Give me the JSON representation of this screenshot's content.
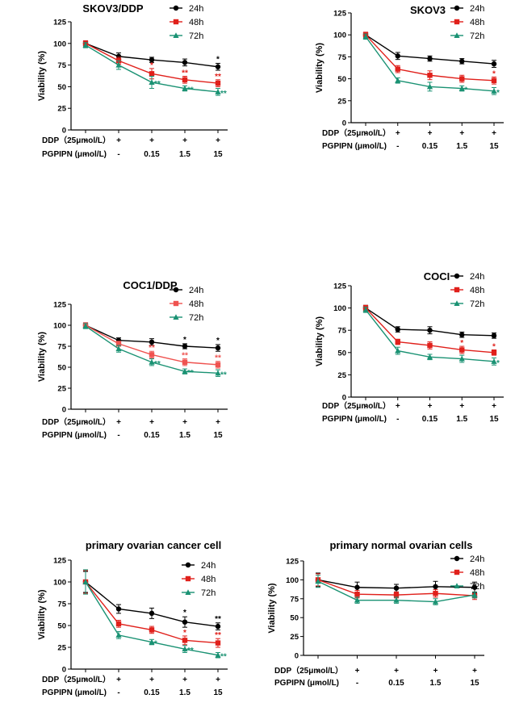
{
  "chart_data": [
    {
      "type": "line",
      "title": "SKOV3/DDP",
      "ylabel": "Viability (%)",
      "ylim": [
        0,
        125
      ],
      "yticks": [
        0,
        25,
        50,
        75,
        100,
        125
      ],
      "conditions": {
        "ddp_label": "DDP（25μmol/L）",
        "ddp": [
          "-",
          "+",
          "+",
          "+",
          "+"
        ],
        "pgpipn_label": "PGPIPN (μmol/L)",
        "pgpipn": [
          "-",
          "-",
          "0.15",
          "1.5",
          "15"
        ]
      },
      "series": [
        {
          "name": "24h",
          "color": "#000000",
          "marker": "circle",
          "values": [
            100,
            85,
            81,
            78,
            73
          ],
          "errors": [
            3,
            4,
            3,
            4,
            4
          ],
          "sig": [
            "",
            "",
            "",
            "",
            "*"
          ]
        },
        {
          "name": "48h",
          "color": "#e0201b",
          "marker": "square",
          "values": [
            100,
            80,
            65,
            58,
            54
          ],
          "errors": [
            3,
            4,
            6,
            4,
            4
          ],
          "sig": [
            "",
            "",
            "*",
            "**",
            "**"
          ]
        },
        {
          "name": "72h",
          "color": "#1a9273",
          "marker": "triangle",
          "values": [
            98,
            75,
            55,
            48,
            44
          ],
          "errors": [
            3,
            5,
            7,
            3,
            4
          ],
          "sig": [
            "",
            "",
            "**",
            "**",
            "**"
          ]
        }
      ]
    },
    {
      "type": "line",
      "title": "SKOV3",
      "ylabel": "Viability (%)",
      "ylim": [
        0,
        125
      ],
      "yticks": [
        0,
        25,
        50,
        75,
        100,
        125
      ],
      "conditions": {
        "ddp_label": "DDP（25μmol/L）",
        "ddp": [
          "-",
          "+",
          "+",
          "+",
          "+"
        ],
        "pgpipn_label": "PGPIPN (μmol/L)",
        "pgpipn": [
          "-",
          "-",
          "0.15",
          "1.5",
          "15"
        ]
      },
      "series": [
        {
          "name": "24h",
          "color": "#000000",
          "marker": "circle",
          "values": [
            100,
            76,
            73,
            70,
            67
          ],
          "errors": [
            3,
            4,
            3,
            3,
            4
          ],
          "sig": [
            "",
            "",
            "",
            "",
            ""
          ]
        },
        {
          "name": "48h",
          "color": "#e0201b",
          "marker": "square",
          "values": [
            100,
            61,
            54,
            50,
            48
          ],
          "errors": [
            3,
            4,
            5,
            4,
            4
          ],
          "sig": [
            "",
            "",
            "",
            "",
            "*"
          ]
        },
        {
          "name": "72h",
          "color": "#1a9273",
          "marker": "triangle",
          "values": [
            98,
            48,
            41,
            39,
            36
          ],
          "errors": [
            3,
            3,
            5,
            3,
            4
          ],
          "sig": [
            "",
            "",
            "",
            "*",
            "*"
          ]
        }
      ]
    },
    {
      "type": "line",
      "title": "COC1/DDP",
      "ylabel": "Viability (%)",
      "ylim": [
        0,
        125
      ],
      "yticks": [
        0,
        25,
        50,
        75,
        100,
        125
      ],
      "conditions": {
        "ddp_label": "DDP（25μmol/L）",
        "ddp": [
          "-",
          "+",
          "+",
          "+",
          "+"
        ],
        "pgpipn_label": "PGPIPN (μmol/L)",
        "pgpipn": [
          "-",
          "-",
          "0.15",
          "1.5",
          "15"
        ]
      },
      "series": [
        {
          "name": "24h",
          "color": "#000000",
          "marker": "circle",
          "values": [
            100,
            82,
            80,
            75,
            73
          ],
          "errors": [
            3,
            3,
            4,
            3,
            4
          ],
          "sig": [
            "",
            "",
            "",
            "*",
            "*"
          ]
        },
        {
          "name": "48h",
          "color": "#ef5350",
          "marker": "square",
          "values": [
            100,
            78,
            65,
            56,
            53
          ],
          "errors": [
            3,
            3,
            4,
            4,
            4
          ],
          "sig": [
            "",
            "",
            "**",
            "**",
            "**"
          ]
        },
        {
          "name": "72h",
          "color": "#1a9273",
          "marker": "triangle",
          "values": [
            99,
            72,
            56,
            45,
            43
          ],
          "errors": [
            3,
            4,
            4,
            3,
            4
          ],
          "sig": [
            "",
            "",
            "**",
            "**",
            "**"
          ]
        }
      ]
    },
    {
      "type": "line",
      "title": "COCI",
      "ylabel": "Viability (%)",
      "ylim": [
        0,
        125
      ],
      "yticks": [
        0,
        25,
        50,
        75,
        100,
        125
      ],
      "conditions": {
        "ddp_label": "DDP（25μmol/L）",
        "ddp": [
          "-",
          "+",
          "+",
          "+",
          "+"
        ],
        "pgpipn_label": "PGPIPN (μmol/L)",
        "pgpipn": [
          "-",
          "-",
          "0.15",
          "1.5",
          "15"
        ]
      },
      "series": [
        {
          "name": "24h",
          "color": "#000000",
          "marker": "circle",
          "values": [
            100,
            76,
            75,
            70,
            69
          ],
          "errors": [
            3,
            3,
            4,
            3,
            3
          ],
          "sig": [
            "",
            "",
            "",
            "",
            ""
          ]
        },
        {
          "name": "48h",
          "color": "#e0201b",
          "marker": "square",
          "values": [
            100,
            62,
            58,
            53,
            50
          ],
          "errors": [
            3,
            3,
            4,
            4,
            3
          ],
          "sig": [
            "",
            "",
            "",
            "*",
            "*"
          ]
        },
        {
          "name": "72h",
          "color": "#1a9273",
          "marker": "triangle",
          "values": [
            98,
            52,
            45,
            43,
            40
          ],
          "errors": [
            3,
            4,
            3,
            4,
            4
          ],
          "sig": [
            "",
            "",
            "",
            "",
            "*"
          ]
        }
      ]
    },
    {
      "type": "line",
      "title": "primary ovarian cancer cell",
      "ylabel": "Viability (%)",
      "ylim": [
        0,
        125
      ],
      "yticks": [
        0,
        25,
        50,
        75,
        100,
        125
      ],
      "conditions": {
        "ddp_label": "DDP（25μmol/L）",
        "ddp": [
          "-",
          "+",
          "+",
          "+",
          "+"
        ],
        "pgpipn_label": "PGPIPN (μmol/L)",
        "pgpipn": [
          "-",
          "-",
          "0.15",
          "1.5",
          "15"
        ]
      },
      "series": [
        {
          "name": "24h",
          "color": "#000000",
          "marker": "circle",
          "values": [
            100,
            69,
            64,
            54,
            49
          ],
          "errors": [
            12,
            5,
            6,
            6,
            4
          ],
          "sig": [
            "",
            "",
            "",
            "*",
            "**"
          ]
        },
        {
          "name": "48h",
          "color": "#e0201b",
          "marker": "square",
          "values": [
            100,
            52,
            45,
            33,
            30
          ],
          "errors": [
            13,
            4,
            4,
            5,
            5
          ],
          "sig": [
            "",
            "",
            "",
            "*",
            "**"
          ]
        },
        {
          "name": "72h",
          "color": "#1a9273",
          "marker": "triangle",
          "values": [
            100,
            39,
            31,
            23,
            16
          ],
          "errors": [
            14,
            4,
            3,
            4,
            3
          ],
          "sig": [
            "",
            "",
            "*",
            "**",
            "**"
          ]
        }
      ]
    },
    {
      "type": "line",
      "title": "primary normal ovarian cells",
      "ylabel": "Viability (%)",
      "ylim": [
        0,
        125
      ],
      "yticks": [
        0,
        25,
        50,
        75,
        100,
        125
      ],
      "conditions": {
        "ddp_label": "DDP（25μmol/L）",
        "ddp": [
          "-",
          "+",
          "+",
          "+",
          "+"
        ],
        "pgpipn_label": "PGPIPN (μmol/L)",
        "pgpipn": [
          "-",
          "-",
          "0.15",
          "1.5",
          "15"
        ]
      },
      "series": [
        {
          "name": "24h",
          "color": "#000000",
          "marker": "circle",
          "values": [
            100,
            90,
            89,
            91,
            90
          ],
          "errors": [
            9,
            7,
            5,
            7,
            7
          ],
          "sig": [
            "",
            "",
            "",
            "",
            ""
          ]
        },
        {
          "name": "48h",
          "color": "#e0201b",
          "marker": "square",
          "values": [
            100,
            81,
            80,
            82,
            79
          ],
          "errors": [
            8,
            5,
            4,
            5,
            5
          ],
          "sig": [
            "",
            "",
            "",
            "",
            ""
          ]
        },
        {
          "name": "72h",
          "color": "#1a9273",
          "marker": "triangle",
          "values": [
            98,
            73,
            73,
            71,
            80
          ],
          "errors": [
            8,
            4,
            4,
            4,
            4
          ],
          "sig": [
            "",
            "",
            "",
            "",
            ""
          ]
        }
      ]
    }
  ]
}
